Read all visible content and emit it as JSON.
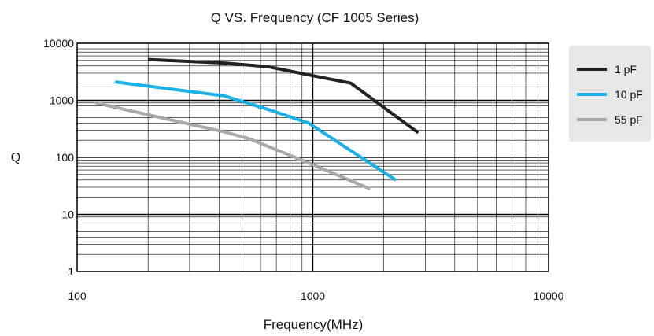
{
  "chart_data": {
    "type": "line",
    "title": "Q VS. Frequency (CF 1005 Series)",
    "xlabel": "Frequency(MHz)",
    "ylabel": "Q",
    "x_scale": "log",
    "y_scale": "log",
    "xlim": [
      100,
      10000
    ],
    "ylim": [
      1,
      10000
    ],
    "x_ticks": [
      "100",
      "1000",
      "10000"
    ],
    "y_ticks": [
      "10000",
      "1000",
      "100",
      "10",
      "1"
    ],
    "grid": true,
    "legend_position": "right",
    "series": [
      {
        "name": "1 pF",
        "color": "#222222",
        "x": [
          200,
          420,
          640,
          1000,
          1450,
          2800
        ],
        "y": [
          5200,
          4500,
          3900,
          2700,
          2000,
          270
        ]
      },
      {
        "name": "10 pF",
        "color": "#1ab0e8",
        "x": [
          145,
          420,
          640,
          960,
          2250
        ],
        "y": [
          2100,
          1200,
          700,
          400,
          40
        ]
      },
      {
        "name": "55 pF",
        "color": "#a9a9a9",
        "x": [
          120,
          420,
          540,
          960,
          1750
        ],
        "y": [
          900,
          280,
          210,
          80,
          28
        ]
      }
    ]
  }
}
